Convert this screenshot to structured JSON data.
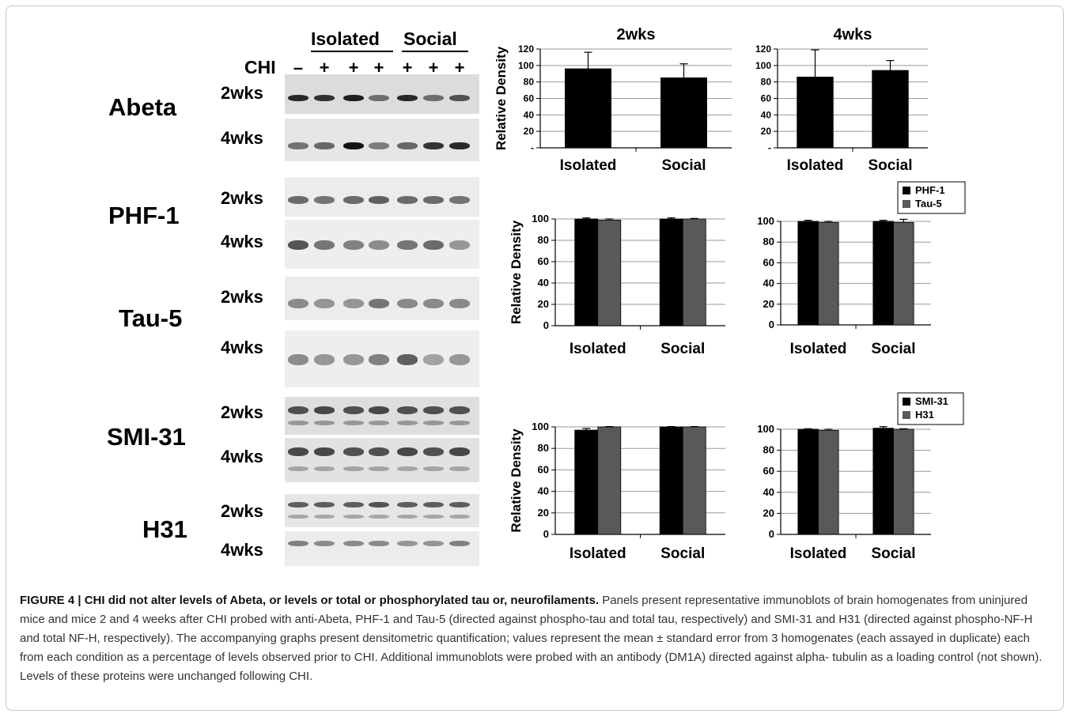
{
  "colors": {
    "series_dark": "#000000",
    "series_grey": "#595959",
    "gridline": "#9a9a9a",
    "frame": "#c7c7c7"
  },
  "blot": {
    "header_isolated": "Isolated",
    "header_social": "Social",
    "chi_label": "CHI",
    "chi_signs": [
      "–",
      "+",
      "+",
      "+",
      "+",
      "+",
      "+"
    ],
    "proteins": [
      "Abeta",
      "PHF-1",
      "Tau-5",
      "SMI-31",
      "H31"
    ],
    "timepoints": [
      "2wks",
      "4wks",
      "2wks",
      "4wks",
      "2wks",
      "4wks",
      "2wks",
      "4wks",
      "2wks",
      "4wks"
    ]
  },
  "chart_data": [
    {
      "type": "bar",
      "title": "2wks",
      "ylabel": "Relative Density",
      "categories": [
        "Isolated",
        "Social"
      ],
      "yticks": [
        "120",
        "100",
        "80",
        "60",
        "40",
        "20",
        "-"
      ],
      "ylim": [
        0,
        120
      ],
      "series": [
        {
          "values": [
            96,
            85
          ],
          "errors": [
            20,
            17
          ]
        }
      ],
      "grid": true,
      "legend": "none"
    },
    {
      "type": "bar",
      "title": "4wks",
      "ylabel": "",
      "categories": [
        "Isolated",
        "Social"
      ],
      "yticks": [
        "120",
        "100",
        "80",
        "60",
        "40",
        "20",
        "-"
      ],
      "ylim": [
        0,
        120
      ],
      "series": [
        {
          "values": [
            86,
            94
          ],
          "errors": [
            33,
            12
          ]
        }
      ],
      "grid": true,
      "legend": "none"
    },
    {
      "type": "bar",
      "title": "",
      "ylabel": "Relative Density",
      "categories": [
        "Isolated",
        "Social"
      ],
      "yticks": [
        "100",
        "80",
        "60",
        "40",
        "20",
        "0"
      ],
      "ylim": [
        0,
        100
      ],
      "series": [
        {
          "name": "PHF-1",
          "values": [
            100,
            100
          ],
          "errors": [
            1,
            1
          ]
        },
        {
          "name": "Tau-5",
          "values": [
            99,
            100
          ],
          "errors": [
            1,
            0.5
          ]
        }
      ],
      "grid": true,
      "legend": "top-right"
    },
    {
      "type": "bar",
      "title": "",
      "ylabel": "",
      "categories": [
        "Isolated",
        "Social"
      ],
      "yticks": [
        "100",
        "80",
        "60",
        "40",
        "20",
        "0"
      ],
      "ylim": [
        0,
        100
      ],
      "series": [
        {
          "values": [
            100,
            100
          ],
          "errors": [
            1,
            1
          ]
        },
        {
          "values": [
            99,
            99
          ],
          "errors": [
            1,
            3
          ]
        }
      ],
      "grid": true,
      "legend": "none"
    },
    {
      "type": "bar",
      "title": "",
      "ylabel": "Relative Density",
      "categories": [
        "Isolated",
        "Social"
      ],
      "yticks": [
        "100",
        "80",
        "60",
        "40",
        "20",
        "0"
      ],
      "ylim": [
        0,
        100
      ],
      "series": [
        {
          "name": "SMI-31",
          "values": [
            97,
            100
          ],
          "errors": [
            1.5,
            0.3
          ]
        },
        {
          "name": "H31",
          "values": [
            100,
            100
          ],
          "errors": [
            0.3,
            0.3
          ]
        }
      ],
      "grid": true,
      "legend": "top-right"
    },
    {
      "type": "bar",
      "title": "",
      "ylabel": "",
      "categories": [
        "Isolated",
        "Social"
      ],
      "yticks": [
        "100",
        "80",
        "60",
        "40",
        "20",
        "0"
      ],
      "ylim": [
        0,
        100
      ],
      "series": [
        {
          "values": [
            100,
            101
          ],
          "errors": [
            0.5,
            1.5
          ]
        },
        {
          "values": [
            99,
            100
          ],
          "errors": [
            1,
            0.5
          ]
        }
      ],
      "grid": true,
      "legend": "none"
    }
  ],
  "caption": {
    "bold": "FIGURE 4 | CHI did not alter levels of Abeta, or levels or total or phosphorylated tau or, neurofilaments.",
    "text": " Panels present representative immunoblots of brain homogenates from uninjured mice and mice 2 and 4 weeks after CHI probed with anti-Abeta, PHF-1 and Tau-5 (directed against phospho-tau and total tau, respectively) and SMI-31 and H31 (directed against phospho-NF-H and total NF-H, respectively). The accompanying graphs present densitometric quantification; values represent the mean ± standard error from 3 homogenates (each assayed in duplicate) each from each condition as a percentage of levels observed prior to CHI. Additional immunoblots were probed with an antibody (DM1A) directed against alpha- tubulin as a loading control (not shown). Levels of these proteins were unchanged following CHI."
  }
}
